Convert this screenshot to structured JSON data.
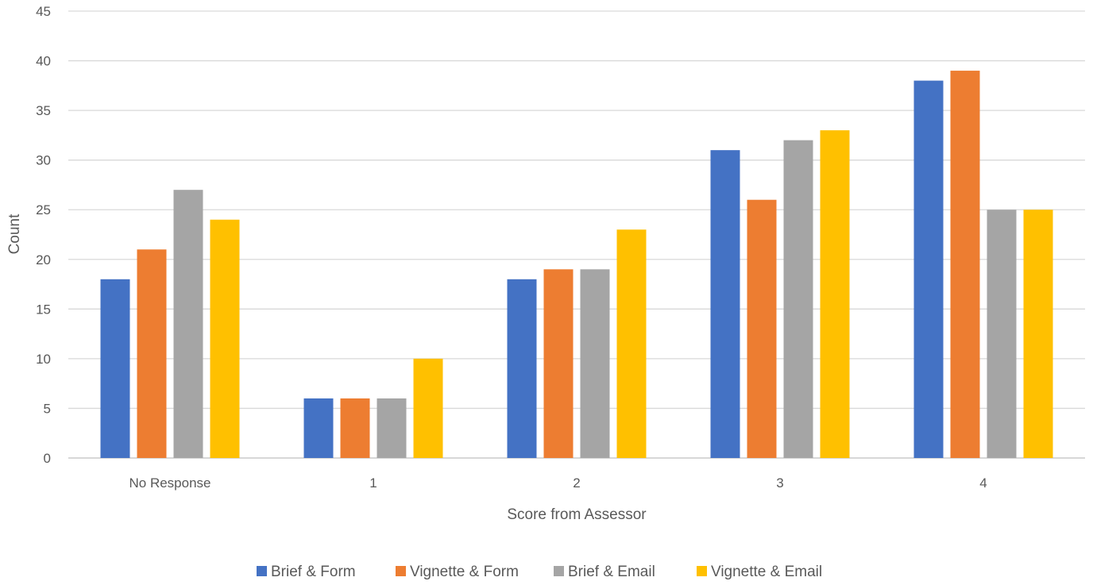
{
  "chart_data": {
    "type": "bar",
    "title": "",
    "xlabel": "Score from Assessor",
    "ylabel": "Count",
    "categories": [
      "No Response",
      "1",
      "2",
      "3",
      "4"
    ],
    "ylim": [
      0,
      45
    ],
    "yticks": [
      0,
      5,
      10,
      15,
      20,
      25,
      30,
      35,
      40,
      45
    ],
    "grid": true,
    "legend": "bottom",
    "series": [
      {
        "name": "Brief & Form",
        "color": "#4472C4",
        "values": [
          18,
          6,
          18,
          31,
          38
        ]
      },
      {
        "name": "Vignette & Form",
        "color": "#ED7D31",
        "values": [
          21,
          6,
          19,
          26,
          39
        ]
      },
      {
        "name": "Brief & Email",
        "color": "#A5A5A5",
        "values": [
          27,
          6,
          19,
          32,
          25
        ]
      },
      {
        "name": "Vignette & Email",
        "color": "#FFC000",
        "values": [
          24,
          10,
          23,
          33,
          25
        ]
      }
    ]
  }
}
